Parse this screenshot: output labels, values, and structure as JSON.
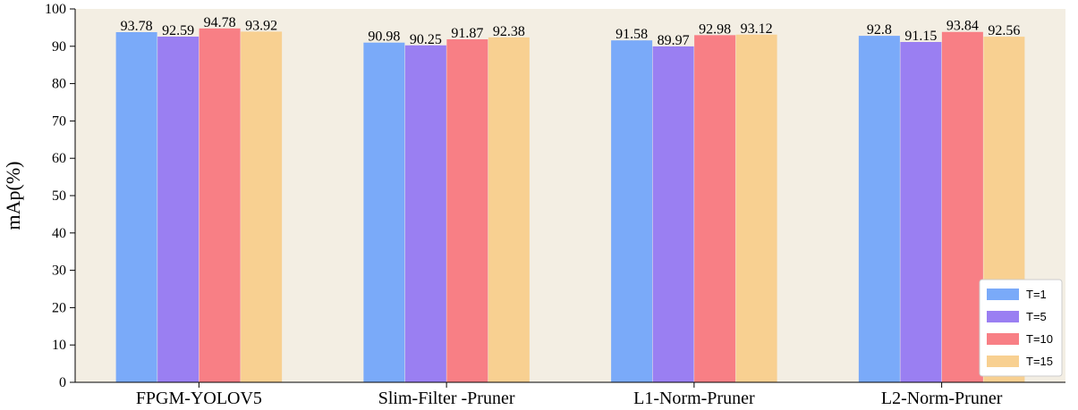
{
  "chart_data": {
    "type": "bar",
    "categories": [
      "FPGM-YOLOV5",
      "Slim-Filter -Pruner",
      "L1-Norm-Pruner",
      "L2-Norm-Pruner"
    ],
    "series": [
      {
        "name": "T=1",
        "values": [
          93.78,
          90.98,
          91.58,
          92.8
        ],
        "labels": [
          "93.78",
          "90.98",
          "91.58",
          "92.8"
        ],
        "color": "#7aaaf9"
      },
      {
        "name": "T=5",
        "values": [
          92.59,
          90.25,
          89.97,
          91.15
        ],
        "labels": [
          "92.59",
          "90.25",
          "89.97",
          "91.15"
        ],
        "color": "#9a7ff2"
      },
      {
        "name": "T=10",
        "values": [
          94.78,
          91.87,
          92.98,
          93.84
        ],
        "labels": [
          "94.78",
          "91.87",
          "92.98",
          "93.84"
        ],
        "color": "#f87f85"
      },
      {
        "name": "T=15",
        "values": [
          93.92,
          92.38,
          93.12,
          92.56
        ],
        "labels": [
          "93.92",
          "92.38",
          "93.12",
          "92.56"
        ],
        "color": "#f8d091"
      }
    ],
    "title": "",
    "xlabel": "",
    "ylabel": "mAp(%)",
    "ylim": [
      0,
      100
    ],
    "yticks": [
      "0",
      "10",
      "20",
      "30",
      "40",
      "50",
      "60",
      "70",
      "80",
      "90",
      "100"
    ],
    "grid": false,
    "legend_position": "bottom-right",
    "background_color": "#f3eee3"
  }
}
